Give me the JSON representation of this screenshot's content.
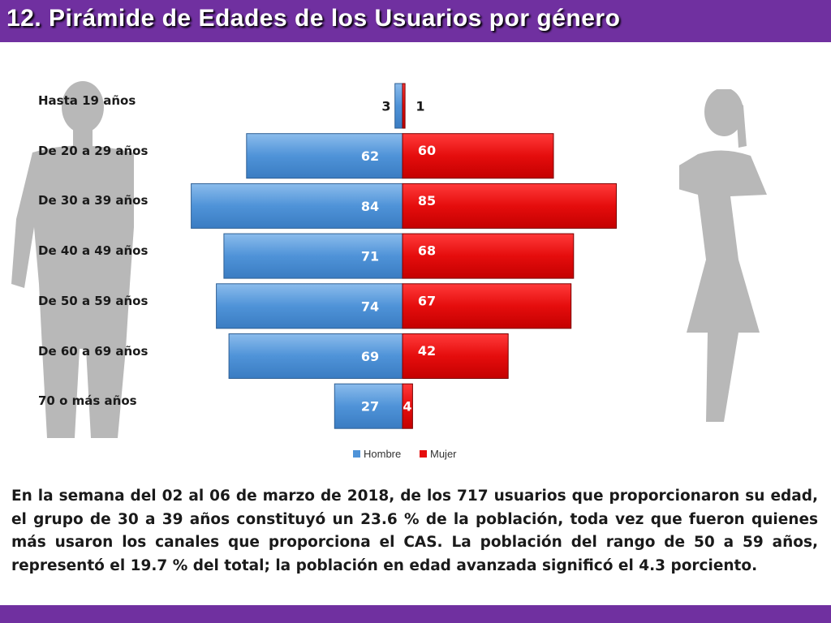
{
  "header": {
    "title": "12. Pirámide de Edades de los Usuarios por género"
  },
  "chart_data": {
    "type": "bar",
    "orientation": "horizontal-pyramid",
    "categories": [
      "Hasta 19 años",
      "De 20 a 29 años",
      "De 30 a 39 años",
      "De 40 a 49 años",
      "De 50 a 59 años",
      "De 60 a 69 años",
      "70 o más años"
    ],
    "series": [
      {
        "name": "Hombre",
        "values": [
          3,
          62,
          84,
          71,
          74,
          69,
          27
        ],
        "labels": [
          "3",
          "62",
          "84",
          "71",
          "74",
          "69",
          "27"
        ],
        "color": "#4f93d8"
      },
      {
        "name": "Mujer",
        "values": [
          1,
          60,
          85,
          68,
          67,
          42,
          4
        ],
        "labels": [
          "1",
          "60",
          "85",
          "68",
          "67",
          "42",
          "4"
        ],
        "color": "#e50d0d"
      }
    ],
    "legend": {
      "position": "bottom",
      "items": [
        "Hombre",
        "Mujer"
      ]
    },
    "grid": false
  },
  "body": {
    "paragraph": "En la semana del 02 al 06 de marzo de 2018, de los 717 usuarios que proporcionaron su edad, el grupo de 30 a 39 años constituyó un 23.6 % de la población, toda vez que fueron quienes más usaron los canales que proporciona el CAS. La población del rango de 50 a 59 años, representó el 19.7 % del total; la población en edad avanzada significó el 4.3 porciento."
  },
  "colors": {
    "header": "#7030a0",
    "hombre": "#4f93d8",
    "mujer": "#e50d0d",
    "silhouette": "#b3b3b3"
  }
}
